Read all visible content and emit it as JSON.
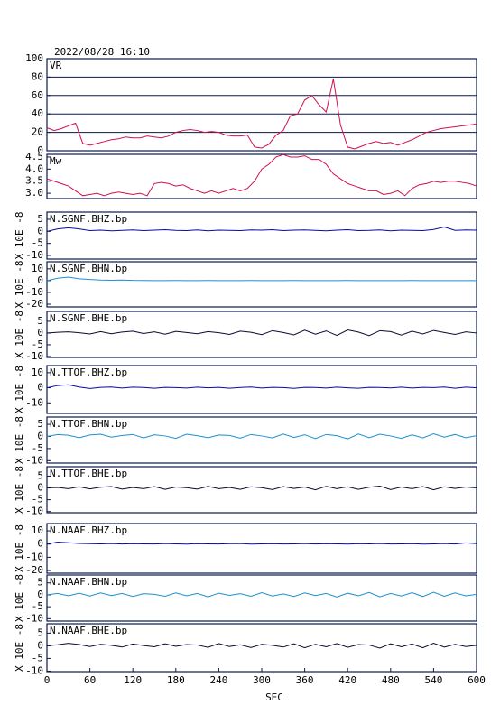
{
  "chart_data": [
    {
      "type": "line",
      "title": "2022/08/28 16:10",
      "grid": true,
      "xlim": [
        0,
        600
      ],
      "ylim": [
        0,
        100
      ],
      "yticks": [
        0,
        20,
        40,
        60,
        80,
        100
      ],
      "x": [
        0,
        10,
        20,
        30,
        40,
        50,
        60,
        70,
        80,
        90,
        100,
        110,
        120,
        130,
        140,
        150,
        160,
        170,
        180,
        190,
        200,
        210,
        220,
        230,
        240,
        250,
        260,
        270,
        280,
        290,
        300,
        310,
        320,
        330,
        340,
        350,
        360,
        370,
        380,
        390,
        400,
        410,
        420,
        430,
        440,
        450,
        460,
        470,
        480,
        490,
        500,
        510,
        520,
        530,
        540,
        550,
        560,
        570,
        580,
        590,
        600
      ],
      "series": [
        {
          "name": "VR",
          "color": "#d0104c",
          "values": [
            25,
            22,
            24,
            27,
            30,
            8,
            6,
            8,
            10,
            12,
            13,
            15,
            14,
            14,
            16,
            15,
            14,
            16,
            20,
            22,
            23,
            22,
            20,
            21,
            20,
            17,
            16,
            16,
            17,
            4,
            3,
            7,
            17,
            22,
            38,
            40,
            55,
            60,
            50,
            42,
            78,
            28,
            4,
            2,
            5,
            8,
            10,
            8,
            9,
            6,
            9,
            12,
            16,
            20,
            22,
            24,
            25,
            26,
            27,
            28,
            29
          ]
        }
      ]
    },
    {
      "type": "line",
      "grid": false,
      "xlim": [
        0,
        600
      ],
      "ylim": [
        2.78,
        4.61
      ],
      "yticks": [
        {
          "value": 3,
          "label": "3.0"
        },
        3.5,
        {
          "value": 4,
          "label": "4.0"
        },
        4.5
      ],
      "x": [
        0,
        10,
        20,
        30,
        40,
        50,
        60,
        70,
        80,
        90,
        100,
        110,
        120,
        130,
        140,
        150,
        160,
        170,
        180,
        190,
        200,
        210,
        220,
        230,
        240,
        250,
        260,
        270,
        280,
        290,
        300,
        310,
        320,
        330,
        340,
        350,
        360,
        370,
        380,
        390,
        400,
        410,
        420,
        430,
        440,
        450,
        460,
        470,
        480,
        490,
        500,
        510,
        520,
        530,
        540,
        550,
        560,
        570,
        580,
        590,
        600
      ],
      "series": [
        {
          "name": "Mw",
          "color": "#d0104c",
          "values": [
            3.6,
            3.5,
            3.4,
            3.3,
            3.1,
            2.9,
            2.95,
            3.0,
            2.9,
            3.0,
            3.05,
            3.0,
            2.95,
            3.0,
            2.9,
            3.4,
            3.45,
            3.4,
            3.3,
            3.35,
            3.2,
            3.1,
            3.0,
            3.1,
            3.0,
            3.1,
            3.2,
            3.1,
            3.2,
            3.5,
            4.0,
            4.2,
            4.5,
            4.6,
            4.5,
            4.5,
            4.55,
            4.4,
            4.4,
            4.2,
            3.8,
            3.6,
            3.4,
            3.3,
            3.2,
            3.1,
            3.1,
            2.95,
            3.0,
            3.1,
            2.9,
            3.2,
            3.35,
            3.4,
            3.5,
            3.45,
            3.5,
            3.5,
            3.45,
            3.4,
            3.3
          ]
        }
      ]
    },
    {
      "type": "line",
      "ylabel": "X 10E -8",
      "xlim": [
        0,
        600
      ],
      "ylim": [
        -11.5,
        8
      ],
      "yticks": [
        5,
        0,
        -5,
        -10
      ],
      "x": [
        0,
        15,
        30,
        45,
        60,
        75,
        90,
        105,
        120,
        135,
        150,
        165,
        180,
        195,
        210,
        225,
        240,
        255,
        270,
        285,
        300,
        315,
        330,
        345,
        360,
        375,
        390,
        405,
        420,
        435,
        450,
        465,
        480,
        495,
        510,
        525,
        540,
        555,
        570,
        585,
        600
      ],
      "series": [
        {
          "name": "N.SGNF.BHZ.bp",
          "color": "#0a0aa0",
          "values": [
            0,
            1,
            1.5,
            1,
            0.3,
            0.5,
            0.2,
            0.4,
            0.6,
            0.3,
            0.5,
            0.7,
            0.4,
            0.3,
            0.6,
            0.2,
            0.5,
            0.4,
            0.3,
            0.6,
            0.5,
            0.7,
            0.3,
            0.5,
            0.6,
            0.4,
            0.2,
            0.5,
            0.7,
            0.3,
            0.4,
            0.6,
            0.2,
            0.5,
            0.4,
            0.3,
            0.8,
            1.8,
            0.4,
            0.6,
            0.5
          ]
        }
      ]
    },
    {
      "type": "line",
      "ylabel": "X 10E -8",
      "xlim": [
        0,
        600
      ],
      "ylim": [
        -22.3,
        16
      ],
      "yticks": [
        10,
        0,
        -10,
        -20
      ],
      "x": [
        0,
        15,
        30,
        45,
        60,
        75,
        90,
        105,
        120,
        135,
        150,
        165,
        180,
        195,
        210,
        225,
        240,
        255,
        270,
        285,
        300,
        315,
        330,
        345,
        360,
        375,
        390,
        405,
        420,
        435,
        450,
        465,
        480,
        495,
        510,
        525,
        540,
        555,
        570,
        585,
        600
      ],
      "series": [
        {
          "name": "N.SGNF.BHN.bp",
          "color": "#1e8fd0",
          "values": [
            0,
            2,
            3,
            1.5,
            1,
            0.5,
            0.3,
            0.5,
            0.2,
            0.1,
            0,
            0,
            0.1,
            0,
            0,
            0.1,
            0,
            0,
            0,
            0.1,
            0,
            0,
            0,
            0.1,
            0,
            0,
            0,
            0,
            0.1,
            0,
            0,
            0,
            0,
            0,
            0.1,
            0,
            0,
            0,
            0,
            0,
            0
          ]
        }
      ]
    },
    {
      "type": "line",
      "ylabel": "X 10E -8",
      "xlim": [
        0,
        600
      ],
      "ylim": [
        -10.4,
        9.2
      ],
      "yticks": [
        5,
        0,
        -5,
        -10
      ],
      "x": [
        0,
        15,
        30,
        45,
        60,
        75,
        90,
        105,
        120,
        135,
        150,
        165,
        180,
        195,
        210,
        225,
        240,
        255,
        270,
        285,
        300,
        315,
        330,
        345,
        360,
        375,
        390,
        405,
        420,
        435,
        450,
        465,
        480,
        495,
        510,
        525,
        540,
        555,
        570,
        585,
        600
      ],
      "series": [
        {
          "name": "N.SGNF.BHE.bp",
          "color": "#0a0a30",
          "values": [
            0,
            0.3,
            0.5,
            0.1,
            -0.4,
            0.6,
            -0.3,
            0.4,
            0.8,
            -0.2,
            0.5,
            -0.5,
            0.7,
            0.2,
            -0.3,
            0.6,
            0.1,
            -0.6,
            0.8,
            0.3,
            -0.7,
            1,
            0.2,
            -0.8,
            1.2,
            -0.5,
            0.9,
            -1,
            1.3,
            0.4,
            -1.1,
            1,
            0.6,
            -0.9,
            0.8,
            -0.4,
            1.1,
            0.2,
            -0.6,
            0.5,
            0
          ]
        }
      ]
    },
    {
      "type": "line",
      "ylabel": "X 10E -8",
      "xlim": [
        0,
        600
      ],
      "ylim": [
        -17,
        14.7
      ],
      "yticks": [
        10,
        0,
        -10
      ],
      "x": [
        0,
        15,
        30,
        45,
        60,
        75,
        90,
        105,
        120,
        135,
        150,
        165,
        180,
        195,
        210,
        225,
        240,
        255,
        270,
        285,
        300,
        315,
        330,
        345,
        360,
        375,
        390,
        405,
        420,
        435,
        450,
        465,
        480,
        495,
        510,
        525,
        540,
        555,
        570,
        585,
        600
      ],
      "series": [
        {
          "name": "N.TTOF.BHZ.bp",
          "color": "#0a0aa0",
          "values": [
            0,
            1.5,
            2,
            0.5,
            -0.5,
            0.3,
            0.5,
            -0.2,
            0.4,
            0.2,
            -0.3,
            0.3,
            0.1,
            -0.2,
            0.4,
            0,
            0.3,
            -0.3,
            0.2,
            0.5,
            -0.2,
            0.3,
            0.1,
            -0.4,
            0.3,
            0.2,
            -0.2,
            0.4,
            0,
            -0.3,
            0.3,
            0.2,
            -0.1,
            0.4,
            -0.2,
            0.3,
            0.1,
            0.5,
            -0.3,
            0.4,
            0
          ]
        }
      ]
    },
    {
      "type": "line",
      "ylabel": "X 10E -8",
      "xlim": [
        0,
        600
      ],
      "ylim": [
        -11,
        8
      ],
      "yticks": [
        5,
        0,
        -5,
        -10
      ],
      "x": [
        0,
        15,
        30,
        45,
        60,
        75,
        90,
        105,
        120,
        135,
        150,
        165,
        180,
        195,
        210,
        225,
        240,
        255,
        270,
        285,
        300,
        315,
        330,
        345,
        360,
        375,
        390,
        405,
        420,
        435,
        450,
        465,
        480,
        495,
        510,
        525,
        540,
        555,
        570,
        585,
        600
      ],
      "series": [
        {
          "name": "N.TTOF.BHN.bp",
          "color": "#1e8fd0",
          "values": [
            0,
            0.8,
            0.5,
            -0.5,
            0.6,
            0.9,
            -0.3,
            0.4,
            0.8,
            -0.6,
            0.7,
            0.2,
            -0.8,
            0.9,
            0.3,
            -0.5,
            0.6,
            0.4,
            -0.7,
            0.8,
            0.2,
            -0.6,
            1,
            -0.4,
            0.7,
            -0.9,
            0.8,
            0.3,
            -1,
            1,
            -0.5,
            0.9,
            0.2,
            -0.8,
            0.7,
            -0.6,
            1.1,
            -0.3,
            0.8,
            -0.5,
            0.3
          ]
        }
      ]
    },
    {
      "type": "line",
      "ylabel": "X 10E -8",
      "xlim": [
        0,
        600
      ],
      "ylim": [
        -10.5,
        9
      ],
      "yticks": [
        5,
        0,
        -5,
        -10
      ],
      "x": [
        0,
        15,
        30,
        45,
        60,
        75,
        90,
        105,
        120,
        135,
        150,
        165,
        180,
        195,
        210,
        225,
        240,
        255,
        270,
        285,
        300,
        315,
        330,
        345,
        360,
        375,
        390,
        405,
        420,
        435,
        450,
        465,
        480,
        495,
        510,
        525,
        540,
        555,
        570,
        585,
        600
      ],
      "series": [
        {
          "name": "N.TTOF.BHE.bp",
          "color": "#0a0a30",
          "values": [
            0,
            0.2,
            -0.3,
            0.5,
            -0.4,
            0.3,
            0.6,
            -0.5,
            0.2,
            -0.3,
            0.6,
            -0.6,
            0.4,
            0.1,
            -0.5,
            0.7,
            -0.3,
            0.2,
            -0.6,
            0.5,
            0.1,
            -0.7,
            0.6,
            -0.2,
            0.4,
            -0.8,
            0.7,
            -0.3,
            0.5,
            -0.6,
            0.3,
            0.8,
            -0.7,
            0.4,
            -0.3,
            0.6,
            -0.8,
            0.5,
            -0.2,
            0.4,
            0
          ]
        }
      ]
    },
    {
      "type": "line",
      "ylabel": "X 10E -8",
      "xlim": [
        0,
        600
      ],
      "ylim": [
        -22,
        15.5
      ],
      "yticks": [
        10,
        0,
        -10,
        -20
      ],
      "x": [
        0,
        15,
        30,
        45,
        60,
        75,
        90,
        105,
        120,
        135,
        150,
        165,
        180,
        195,
        210,
        225,
        240,
        255,
        270,
        285,
        300,
        315,
        330,
        345,
        360,
        375,
        390,
        405,
        420,
        435,
        450,
        465,
        480,
        495,
        510,
        525,
        540,
        555,
        570,
        585,
        600
      ],
      "series": [
        {
          "name": "N.NAAF.BHZ.bp",
          "color": "#0a0aa0",
          "values": [
            0,
            1.5,
            1,
            0.5,
            0.3,
            0.2,
            0.4,
            0.1,
            0.3,
            0.2,
            0.1,
            0.4,
            0.2,
            0,
            0.3,
            0.2,
            0.1,
            0.3,
            0.4,
            0,
            0.2,
            0.3,
            0.1,
            0.2,
            0.4,
            0.1,
            0.3,
            0.2,
            0,
            0.3,
            0.2,
            0.4,
            0.1,
            0.2,
            0.3,
            0,
            0.2,
            0.4,
            0.1,
            0.9,
            0.3
          ]
        }
      ]
    },
    {
      "type": "line",
      "ylabel": "X 10E -8",
      "xlim": [
        0,
        600
      ],
      "ylim": [
        -11,
        8.3
      ],
      "yticks": [
        5,
        0,
        -5,
        -10
      ],
      "x": [
        0,
        15,
        30,
        45,
        60,
        75,
        90,
        105,
        120,
        135,
        150,
        165,
        180,
        195,
        210,
        225,
        240,
        255,
        270,
        285,
        300,
        315,
        330,
        345,
        360,
        375,
        390,
        405,
        420,
        435,
        450,
        465,
        480,
        495,
        510,
        525,
        540,
        555,
        570,
        585,
        600
      ],
      "series": [
        {
          "name": "N.NAAF.BHN.bp",
          "color": "#1e8fd0",
          "values": [
            0,
            0.6,
            -0.4,
            0.7,
            -0.5,
            0.8,
            -0.3,
            0.6,
            -0.7,
            0.5,
            0.2,
            -0.6,
            0.8,
            -0.4,
            0.6,
            -0.8,
            0.7,
            -0.2,
            0.5,
            -0.6,
            0.9,
            -0.5,
            0.4,
            -0.7,
            0.8,
            -0.3,
            0.6,
            -0.9,
            0.7,
            -0.4,
            1,
            -0.8,
            0.6,
            -0.5,
            0.9,
            -0.7,
            1.1,
            -0.6,
            0.8,
            -0.4,
            0.2
          ]
        }
      ]
    },
    {
      "type": "line",
      "ylabel": "X 10E -8",
      "xlabel": "SEC",
      "xlim": [
        0,
        600
      ],
      "xticks": [
        0,
        60,
        120,
        180,
        240,
        300,
        360,
        420,
        480,
        540,
        600
      ],
      "ylim": [
        -10.2,
        8.7
      ],
      "yticks": [
        5,
        0,
        -5,
        -10
      ],
      "x": [
        0,
        15,
        30,
        45,
        60,
        75,
        90,
        105,
        120,
        135,
        150,
        165,
        180,
        195,
        210,
        225,
        240,
        255,
        270,
        285,
        300,
        315,
        330,
        345,
        360,
        375,
        390,
        405,
        420,
        435,
        450,
        465,
        480,
        495,
        510,
        525,
        540,
        555,
        570,
        585,
        600
      ],
      "series": [
        {
          "name": "N.NAAF.BHE.bp",
          "color": "#0a0a30",
          "values": [
            0,
            0.4,
            1,
            0.5,
            -0.3,
            0.6,
            0.2,
            -0.5,
            0.7,
            0.1,
            -0.4,
            0.8,
            -0.2,
            0.5,
            0.3,
            -0.6,
            0.9,
            -0.3,
            0.4,
            -0.7,
            0.6,
            0.2,
            -0.5,
            0.8,
            -0.8,
            0.6,
            -0.4,
            0.9,
            -0.6,
            0.5,
            0.3,
            -0.9,
            0.8,
            -0.4,
            0.7,
            -0.8,
            1,
            -0.5,
            0.6,
            -0.3,
            0.2
          ]
        }
      ]
    }
  ]
}
